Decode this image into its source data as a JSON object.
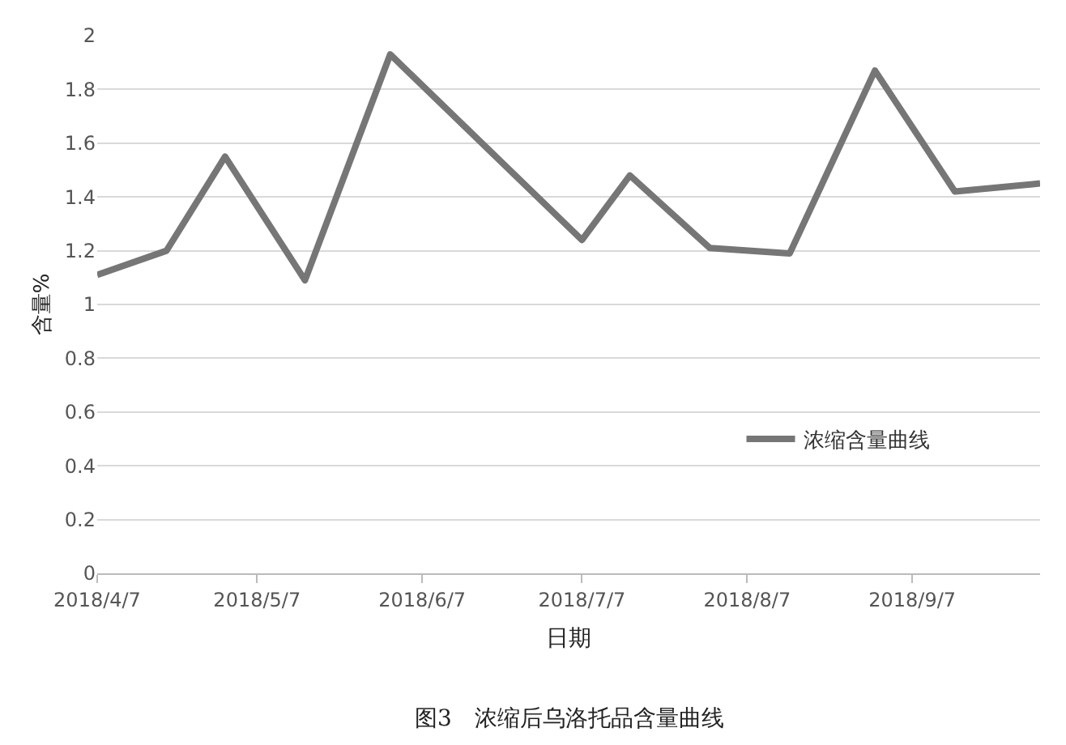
{
  "chart_data": {
    "type": "line",
    "xlabel": "日期",
    "ylabel": "含量%",
    "x": [
      "2018-04-07",
      "2018-04-20",
      "2018-05-01",
      "2018-05-16",
      "2018-06-01",
      "2018-07-07",
      "2018-07-16",
      "2018-07-31",
      "2018-08-15",
      "2018-08-31",
      "2018-09-15",
      "2018-10-01"
    ],
    "series": [
      {
        "name": "浓缩含量曲线",
        "color": "#767676",
        "values": [
          1.11,
          1.2,
          1.55,
          1.09,
          1.93,
          1.24,
          1.48,
          1.21,
          1.19,
          1.87,
          1.42,
          1.45
        ]
      }
    ],
    "xlim": [
      "2018-04-07",
      "2018-10-01"
    ],
    "xticks": [
      {
        "value": "2018-04-07",
        "label": "2018/4/7"
      },
      {
        "value": "2018-05-07",
        "label": "2018/5/7"
      },
      {
        "value": "2018-06-07",
        "label": "2018/6/7"
      },
      {
        "value": "2018-07-07",
        "label": "2018/7/7"
      },
      {
        "value": "2018-08-07",
        "label": "2018/8/7"
      },
      {
        "value": "2018-09-07",
        "label": "2018/9/7"
      }
    ],
    "ylim": [
      0,
      2
    ],
    "yticks": [
      0,
      0.2,
      0.4,
      0.6,
      0.8,
      1,
      1.2,
      1.4,
      1.6,
      1.8,
      2
    ],
    "grid": "y",
    "legend": "right",
    "marker": "none",
    "line_style": "solid",
    "annotations": [
      "图3　浓缩后乌洛托品含量曲线"
    ]
  }
}
